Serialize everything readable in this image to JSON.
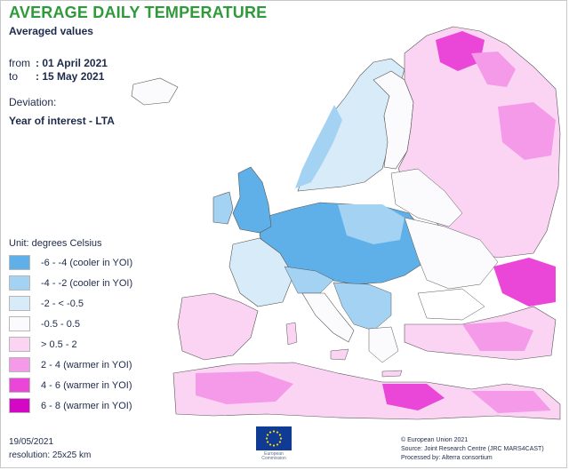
{
  "title": "AVERAGE DAILY TEMPERATURE",
  "subtitle": "Averaged values",
  "period": {
    "from_label": "from",
    "from_value": ": 01 April 2021",
    "to_label": "to",
    "to_value": ": 15 May 2021"
  },
  "deviation_label": "Deviation:",
  "deviation_value": "Year of interest - LTA",
  "legend": {
    "unit": "Unit:  degrees Celsius",
    "items": [
      {
        "label": "-6 - -4 (cooler in YOI)",
        "color": "#5fb0e8"
      },
      {
        "label": "-4 - -2 (cooler in YOI)",
        "color": "#a3d2f2"
      },
      {
        "label": "-2 - < -0.5",
        "color": "#d8ebf8"
      },
      {
        "label": "-0.5 - 0.5",
        "color": "#fbfbfd"
      },
      {
        "label": "> 0.5 - 2",
        "color": "#fbd4f4"
      },
      {
        "label": "2 - 4 (warmer in YOI)",
        "color": "#f49ae8"
      },
      {
        "label": "4 - 6 (warmer in YOI)",
        "color": "#ea46d8"
      },
      {
        "label": "6 - 8 (warmer in YOI)",
        "color": "#d408c4"
      }
    ]
  },
  "footer": {
    "date": "19/05/2021",
    "resolution": "resolution:  25x25 km"
  },
  "logo": {
    "text_line1": "European",
    "text_line2": "Commission",
    "flag_color": "#0f3b95",
    "star_color": "#ffdd00"
  },
  "credits": {
    "line1": "© European Union 2021",
    "line2": "Source: Joint Research Centre (JRC MARS4CAST)",
    "line3": "Processed by: Alterra consortium"
  },
  "colors": {
    "title": "#2f9a3a",
    "text": "#1d2a4a",
    "border": "#3a3a3a"
  }
}
